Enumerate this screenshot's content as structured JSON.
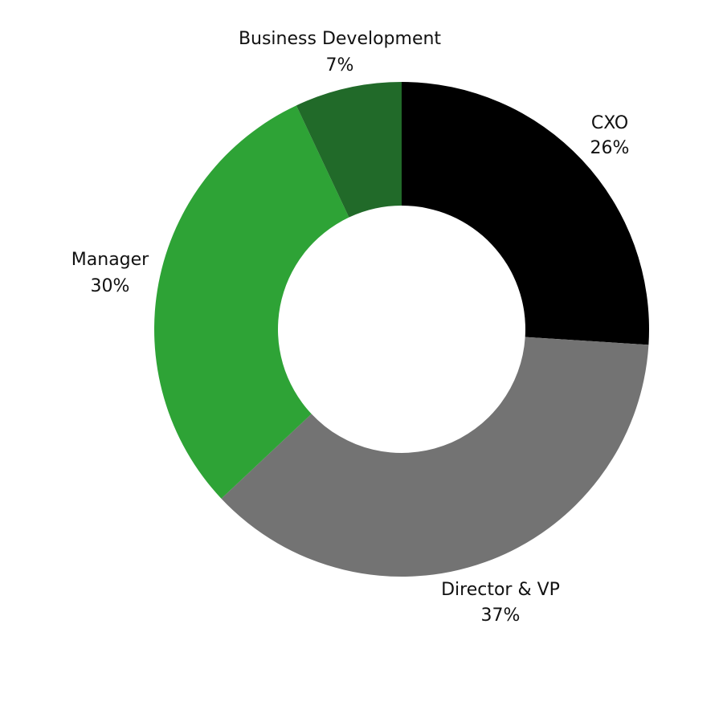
{
  "chart_data": {
    "type": "pie",
    "variant": "donut",
    "title": "",
    "slices": [
      {
        "label": "CXO",
        "value": 26,
        "value_label": "26%",
        "color": "#000000"
      },
      {
        "label": "Director & VP",
        "value": 37,
        "value_label": "37%",
        "color": "#737373"
      },
      {
        "label": "Manager",
        "value": 30,
        "value_label": "30%",
        "color": "#2ea336"
      },
      {
        "label": "Business Development",
        "value": 7,
        "value_label": "7%",
        "color": "#216a29"
      }
    ],
    "start_angle": "12 o'clock",
    "direction": "clockwise",
    "legend": "none",
    "data_labels": "outside"
  }
}
